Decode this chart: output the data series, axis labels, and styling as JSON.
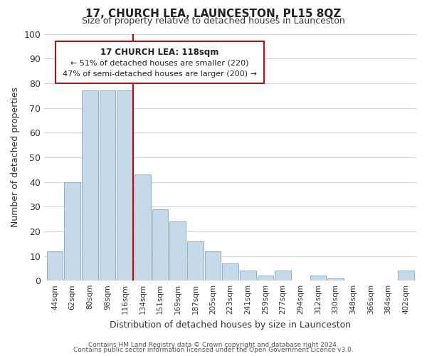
{
  "title": "17, CHURCH LEA, LAUNCESTON, PL15 8QZ",
  "subtitle": "Size of property relative to detached houses in Launceston",
  "xlabel": "Distribution of detached houses by size in Launceston",
  "ylabel": "Number of detached properties",
  "bar_labels": [
    "44sqm",
    "62sqm",
    "80sqm",
    "98sqm",
    "116sqm",
    "134sqm",
    "151sqm",
    "169sqm",
    "187sqm",
    "205sqm",
    "223sqm",
    "241sqm",
    "259sqm",
    "277sqm",
    "294sqm",
    "312sqm",
    "330sqm",
    "348sqm",
    "366sqm",
    "384sqm",
    "402sqm"
  ],
  "bar_values": [
    12,
    40,
    77,
    77,
    77,
    43,
    29,
    24,
    16,
    12,
    7,
    4,
    2,
    4,
    0,
    2,
    1,
    0,
    0,
    0,
    4
  ],
  "bar_color": "#c5d9e8",
  "bar_edge_color": "#8ab4cc",
  "property_line_index": 4,
  "property_line_color": "#cc0000",
  "ylim": [
    0,
    100
  ],
  "yticks": [
    0,
    10,
    20,
    30,
    40,
    50,
    60,
    70,
    80,
    90,
    100
  ],
  "annotation_title": "17 CHURCH LEA: 118sqm",
  "annotation_line1": "← 51% of detached houses are smaller (220)",
  "annotation_line2": "47% of semi-detached houses are larger (200) →",
  "annotation_box_color": "#ffffff",
  "annotation_box_edge_color": "#cc0000",
  "footer_line1": "Contains HM Land Registry data © Crown copyright and database right 2024.",
  "footer_line2": "Contains public sector information licensed under the Open Government Licence v3.0.",
  "background_color": "#ffffff",
  "grid_color": "#c8d8e8"
}
